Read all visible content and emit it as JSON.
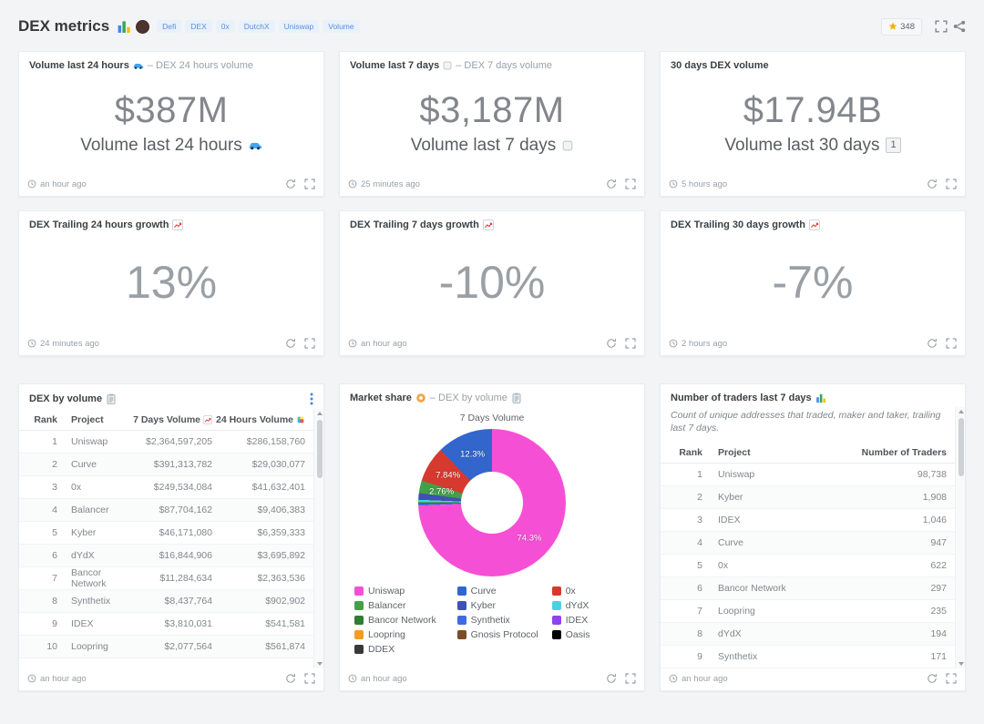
{
  "header": {
    "title": "DEX metrics",
    "tags": [
      "Defi",
      "DEX",
      "0x",
      "DutchX",
      "Uniswap",
      "Volume"
    ],
    "star_count": "348"
  },
  "cards": {
    "vol24": {
      "title": "Volume last 24 hours",
      "source": "– DEX 24 hours volume",
      "value": "$387M",
      "caption": "Volume last 24 hours",
      "updated": "an hour ago"
    },
    "vol7": {
      "title": "Volume last 7 days",
      "source": "– DEX 7 days volume",
      "value": "$3,187M",
      "caption": "Volume last 7 days",
      "updated": "25 minutes ago"
    },
    "vol30": {
      "title": "30 days DEX volume",
      "value": "$17.94B",
      "caption": "Volume last 30 days",
      "caption_badge": "1",
      "updated": "5 hours ago"
    },
    "growth24": {
      "title": "DEX Trailing 24 hours growth",
      "value": "13%",
      "updated": "24 minutes ago"
    },
    "growth7": {
      "title": "DEX Trailing 7 days growth",
      "value": "-10%",
      "updated": "an hour ago"
    },
    "growth30": {
      "title": "DEX Trailing 30 days growth",
      "value": "-7%",
      "updated": "2 hours ago"
    },
    "dex_by_volume": {
      "title": "DEX by volume",
      "updated": "an hour ago",
      "table": {
        "headers": [
          "Rank",
          "Project",
          "7 Days Volume",
          "24 Hours Volume"
        ],
        "rows": [
          [
            "1",
            "Uniswap",
            "$2,364,597,205",
            "$286,158,760"
          ],
          [
            "2",
            "Curve",
            "$391,313,782",
            "$29,030,077"
          ],
          [
            "3",
            "0x",
            "$249,534,084",
            "$41,632,401"
          ],
          [
            "4",
            "Balancer",
            "$87,704,162",
            "$9,406,383"
          ],
          [
            "5",
            "Kyber",
            "$46,171,080",
            "$6,359,333"
          ],
          [
            "6",
            "dYdX",
            "$16,844,906",
            "$3,695,892"
          ],
          [
            "7",
            "Bancor Network",
            "$11,284,634",
            "$2,363,536"
          ],
          [
            "8",
            "Synthetix",
            "$8,437,764",
            "$902,902"
          ],
          [
            "9",
            "IDEX",
            "$3,810,031",
            "$541,581"
          ],
          [
            "10",
            "Loopring",
            "$2,077,564",
            "$561,874"
          ]
        ]
      }
    },
    "market_share": {
      "title": "Market share",
      "source": "– DEX by volume",
      "updated": "an hour ago"
    },
    "traders": {
      "title": "Number of traders last 7 days",
      "description": "Count of unique addresses that traded, maker and taker, trailing last 7 days.",
      "updated": "an hour ago",
      "table": {
        "headers": [
          "Rank",
          "Project",
          "Number of Traders"
        ],
        "rows": [
          [
            "1",
            "Uniswap",
            "98,738"
          ],
          [
            "2",
            "Kyber",
            "1,908"
          ],
          [
            "3",
            "IDEX",
            "1,046"
          ],
          [
            "4",
            "Curve",
            "947"
          ],
          [
            "5",
            "0x",
            "622"
          ],
          [
            "6",
            "Bancor Network",
            "297"
          ],
          [
            "7",
            "Loopring",
            "235"
          ],
          [
            "8",
            "dYdX",
            "194"
          ],
          [
            "9",
            "Synthetix",
            "171"
          ]
        ]
      }
    }
  },
  "chart_data": {
    "type": "pie",
    "donut": true,
    "title": "7 Days Volume",
    "legend_position": "bottom",
    "slices": [
      {
        "name": "Uniswap",
        "pct": 74.3,
        "color": "#f550d5",
        "label": "74.3%"
      },
      {
        "name": "Loopring",
        "pct": 0.07,
        "color": "#f59b23",
        "label": ""
      },
      {
        "name": "IDEX",
        "pct": 0.12,
        "color": "#8e44ec",
        "label": ""
      },
      {
        "name": "Synthetix",
        "pct": 0.27,
        "color": "#4169e1",
        "label": ""
      },
      {
        "name": "Bancor Network",
        "pct": 0.35,
        "color": "#2e7d32",
        "label": ""
      },
      {
        "name": "dYdX",
        "pct": 0.53,
        "color": "#4dd0e1",
        "label": ""
      },
      {
        "name": "Kyber",
        "pct": 1.45,
        "color": "#3f51b5",
        "label": ""
      },
      {
        "name": "Balancer",
        "pct": 2.76,
        "color": "#43a047",
        "label": "2.76%"
      },
      {
        "name": "0x",
        "pct": 7.84,
        "color": "#d63a2e",
        "label": "7.84%"
      },
      {
        "name": "Curve",
        "pct": 12.31,
        "color": "#3366cc",
        "label": "12.3%"
      }
    ],
    "legend": [
      {
        "name": "Uniswap",
        "color": "#f550d5"
      },
      {
        "name": "Curve",
        "color": "#3366cc"
      },
      {
        "name": "0x",
        "color": "#d63a2e"
      },
      {
        "name": "Balancer",
        "color": "#43a047"
      },
      {
        "name": "Kyber",
        "color": "#3f51b5"
      },
      {
        "name": "dYdX",
        "color": "#4dd0e1"
      },
      {
        "name": "Bancor Network",
        "color": "#2e7d32"
      },
      {
        "name": "Synthetix",
        "color": "#4169e1"
      },
      {
        "name": "IDEX",
        "color": "#8e44ec"
      },
      {
        "name": "Loopring",
        "color": "#f59b23"
      },
      {
        "name": "Gnosis Protocol",
        "color": "#7b4b2a"
      },
      {
        "name": "Oasis",
        "color": "#000000"
      },
      {
        "name": "DDEX",
        "color": "#37383a"
      }
    ]
  }
}
